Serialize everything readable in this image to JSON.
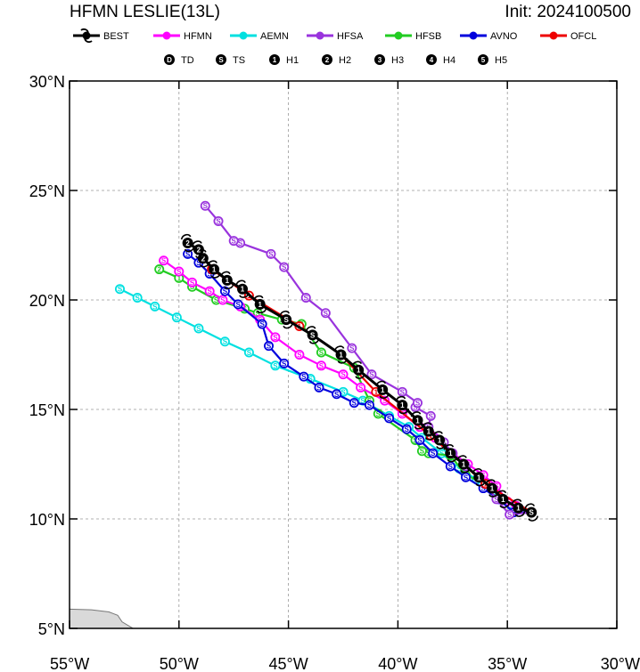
{
  "title_left": "HFMN LESLIE(13L)",
  "title_right": "Init: 2024100500",
  "colors": {
    "BEST": "#000000",
    "HFMN": "#ff00ff",
    "AEMN": "#00e0e0",
    "HFSA": "#9933dd",
    "HFSB": "#22cc22",
    "AVNO": "#0000dd",
    "OFCL": "#ee0000",
    "land": "#d9d9d9",
    "grid": "#999999"
  },
  "legend_models": [
    "BEST",
    "HFMN",
    "AEMN",
    "HFSA",
    "HFSB",
    "AVNO",
    "OFCL"
  ],
  "legend_intensity": [
    {
      "sym": "D",
      "label": "TD"
    },
    {
      "sym": "S",
      "label": "TS"
    },
    {
      "sym": "1",
      "label": "H1"
    },
    {
      "sym": "2",
      "label": "H2"
    },
    {
      "sym": "3",
      "label": "H3"
    },
    {
      "sym": "4",
      "label": "H4"
    },
    {
      "sym": "5",
      "label": "H5"
    }
  ],
  "axes": {
    "lon_range": [
      -55,
      -30
    ],
    "lat_range": [
      5,
      30
    ],
    "lon_ticks": [
      -55,
      -50,
      -45,
      -40,
      -35,
      -30
    ],
    "lat_ticks": [
      5,
      10,
      15,
      20,
      25,
      30
    ],
    "lon_labels": [
      "55°W",
      "50°W",
      "45°W",
      "40°W",
      "35°W",
      "30°W"
    ],
    "lat_labels": [
      "5°N",
      "10°N",
      "15°N",
      "20°N",
      "25°N",
      "30°N"
    ],
    "grid": "dashed"
  },
  "chart_data": {
    "type": "map-track",
    "tracks": [
      {
        "model": "BEST",
        "points": [
          [
            -33.9,
            10.3,
            "S"
          ],
          [
            -34.5,
            10.5,
            "1"
          ],
          [
            -35.2,
            10.9,
            "1"
          ],
          [
            -35.7,
            11.4,
            "1"
          ],
          [
            -36.3,
            11.9,
            "1"
          ],
          [
            -37.0,
            12.5,
            "1"
          ],
          [
            -37.6,
            13.0,
            "1"
          ],
          [
            -38.1,
            13.6,
            "1"
          ],
          [
            -38.6,
            14.0,
            "1"
          ],
          [
            -39.1,
            14.5,
            "1"
          ],
          [
            -39.8,
            15.2,
            "1"
          ],
          [
            -40.7,
            15.9,
            "1"
          ],
          [
            -41.8,
            16.8,
            "1"
          ],
          [
            -42.6,
            17.5,
            "1"
          ],
          [
            -43.9,
            18.4,
            "S"
          ],
          [
            -45.1,
            19.1,
            "S"
          ],
          [
            -46.3,
            19.8,
            "1"
          ],
          [
            -47.1,
            20.5,
            "1"
          ],
          [
            -47.8,
            20.9,
            "1"
          ],
          [
            -48.4,
            21.4,
            "1"
          ],
          [
            -48.9,
            21.9,
            "2"
          ],
          [
            -49.1,
            22.3,
            "2"
          ],
          [
            -49.6,
            22.6,
            "2"
          ]
        ]
      },
      {
        "model": "OFCL",
        "points": [
          [
            -33.9,
            10.3,
            "S"
          ],
          [
            -36.0,
            11.6,
            "1"
          ],
          [
            -38.5,
            13.8,
            "1"
          ],
          [
            -41.0,
            15.8,
            "1"
          ],
          [
            -42.6,
            17.5,
            "1"
          ],
          [
            -44.5,
            18.8,
            "1"
          ],
          [
            -46.8,
            20.2,
            "1"
          ],
          [
            -48.5,
            21.4,
            "1"
          ]
        ]
      },
      {
        "model": "HFMN",
        "points": [
          [
            -33.9,
            10.3,
            "S"
          ],
          [
            -34.6,
            10.6,
            "S"
          ],
          [
            -35.0,
            10.8,
            "S"
          ],
          [
            -35.5,
            11.5,
            "S"
          ],
          [
            -36.1,
            12.0,
            "S"
          ],
          [
            -36.8,
            12.5,
            "S"
          ],
          [
            -37.5,
            13.0,
            "S"
          ],
          [
            -38.3,
            13.7,
            "S"
          ],
          [
            -39.0,
            14.2,
            "S"
          ],
          [
            -39.8,
            14.8,
            "S"
          ],
          [
            -40.6,
            15.4,
            "S"
          ],
          [
            -41.7,
            16.0,
            "S"
          ],
          [
            -42.5,
            16.6,
            "S"
          ],
          [
            -43.5,
            17.0,
            "S"
          ],
          [
            -44.5,
            17.5,
            "S"
          ],
          [
            -45.6,
            18.3,
            "S"
          ],
          [
            -46.3,
            19.1,
            "S"
          ],
          [
            -47.2,
            19.7,
            "S"
          ],
          [
            -48.0,
            20.0,
            "S"
          ],
          [
            -48.6,
            20.4,
            "S"
          ],
          [
            -49.4,
            20.8,
            "S"
          ],
          [
            -50.0,
            21.3,
            "S"
          ],
          [
            -50.7,
            21.8,
            "S"
          ]
        ]
      },
      {
        "model": "AEMN",
        "points": [
          [
            -33.9,
            10.3,
            "S"
          ],
          [
            -34.8,
            10.6,
            "S"
          ],
          [
            -35.6,
            11.3,
            "S"
          ],
          [
            -36.4,
            11.8,
            "S"
          ],
          [
            -37.2,
            12.3,
            "S"
          ],
          [
            -38.0,
            13.0,
            "S"
          ],
          [
            -38.9,
            13.7,
            "S"
          ],
          [
            -39.5,
            14.2,
            "S"
          ],
          [
            -40.4,
            14.7,
            "S"
          ],
          [
            -41.6,
            15.4,
            "S"
          ],
          [
            -42.5,
            15.8,
            "S"
          ],
          [
            -44.0,
            16.4,
            "S"
          ],
          [
            -45.6,
            17.0,
            "S"
          ],
          [
            -46.8,
            17.6,
            "S"
          ],
          [
            -47.9,
            18.1,
            "S"
          ],
          [
            -49.1,
            18.7,
            "S"
          ],
          [
            -50.1,
            19.2,
            "S"
          ],
          [
            -51.1,
            19.7,
            "S"
          ],
          [
            -51.9,
            20.1,
            "S"
          ],
          [
            -52.7,
            20.5,
            "S"
          ]
        ]
      },
      {
        "model": "HFSA",
        "points": [
          [
            -33.9,
            10.3,
            "S"
          ],
          [
            -34.9,
            10.2,
            "S"
          ],
          [
            -35.5,
            10.9,
            "S"
          ],
          [
            -36.0,
            11.6,
            "S"
          ],
          [
            -36.9,
            12.4,
            "S"
          ],
          [
            -37.5,
            13.0,
            "S"
          ],
          [
            -37.9,
            13.5,
            "S"
          ],
          [
            -38.6,
            14.2,
            "S"
          ],
          [
            -38.5,
            14.7,
            "S"
          ],
          [
            -39.2,
            15.1,
            "S"
          ],
          [
            -39.1,
            15.3,
            "S"
          ],
          [
            -39.8,
            15.8,
            "S"
          ],
          [
            -41.2,
            16.6,
            "S"
          ],
          [
            -42.1,
            17.8,
            "S"
          ],
          [
            -43.3,
            19.4,
            "S"
          ],
          [
            -44.2,
            20.1,
            "S"
          ],
          [
            -45.2,
            21.5,
            "S"
          ],
          [
            -45.8,
            22.1,
            "S"
          ],
          [
            -47.2,
            22.6,
            "S"
          ],
          [
            -47.5,
            22.7,
            "S"
          ],
          [
            -48.2,
            23.6,
            "S"
          ],
          [
            -48.8,
            24.3,
            "S"
          ]
        ]
      },
      {
        "model": "HFSB",
        "points": [
          [
            -33.9,
            10.3,
            "S"
          ],
          [
            -35.2,
            10.9,
            "S"
          ],
          [
            -36.0,
            11.6,
            "S"
          ],
          [
            -36.9,
            12.0,
            "S"
          ],
          [
            -37.6,
            12.9,
            "S"
          ],
          [
            -38.6,
            13.0,
            "S"
          ],
          [
            -38.9,
            13.1,
            "S"
          ],
          [
            -39.2,
            13.6,
            "S"
          ],
          [
            -40.9,
            14.8,
            "S"
          ],
          [
            -41.3,
            15.4,
            "S"
          ],
          [
            -42.0,
            16.9,
            "S"
          ],
          [
            -43.5,
            17.6,
            "S"
          ],
          [
            -44.4,
            18.9,
            "S"
          ],
          [
            -45.3,
            19.1,
            "S"
          ],
          [
            -46.4,
            19.4,
            "S"
          ],
          [
            -47.0,
            19.6,
            "S"
          ],
          [
            -48.3,
            20.0,
            "S"
          ],
          [
            -49.4,
            20.6,
            "S"
          ],
          [
            -50.0,
            21.0,
            "1"
          ],
          [
            -50.9,
            21.4,
            "2"
          ]
        ]
      },
      {
        "model": "AVNO",
        "points": [
          [
            -33.9,
            10.3,
            "S"
          ],
          [
            -34.7,
            10.3,
            "S"
          ],
          [
            -35.4,
            10.9,
            "S"
          ],
          [
            -36.1,
            11.4,
            "S"
          ],
          [
            -36.9,
            11.9,
            "S"
          ],
          [
            -37.6,
            12.4,
            "S"
          ],
          [
            -38.4,
            13.0,
            "S"
          ],
          [
            -39.0,
            13.6,
            "S"
          ],
          [
            -39.6,
            14.1,
            "S"
          ],
          [
            -40.4,
            14.6,
            "S"
          ],
          [
            -41.3,
            15.2,
            "S"
          ],
          [
            -42.0,
            15.3,
            "S"
          ],
          [
            -42.8,
            15.7,
            "S"
          ],
          [
            -43.6,
            16.0,
            "S"
          ],
          [
            -44.3,
            16.5,
            "S"
          ],
          [
            -45.2,
            17.1,
            "S"
          ],
          [
            -45.9,
            17.9,
            "S"
          ],
          [
            -46.2,
            18.9,
            "S"
          ],
          [
            -47.3,
            19.8,
            "S"
          ],
          [
            -47.9,
            20.4,
            "S"
          ],
          [
            -48.6,
            21.2,
            "S"
          ],
          [
            -49.1,
            21.7,
            "S"
          ],
          [
            -49.6,
            22.1,
            "S"
          ]
        ]
      }
    ],
    "land": [
      [
        -55,
        5.0
      ],
      [
        -55,
        5.88
      ],
      [
        -54.0,
        5.85
      ],
      [
        -53.2,
        5.75
      ],
      [
        -52.8,
        5.6
      ],
      [
        -52.6,
        5.3
      ],
      [
        -52.1,
        5.0
      ]
    ]
  }
}
